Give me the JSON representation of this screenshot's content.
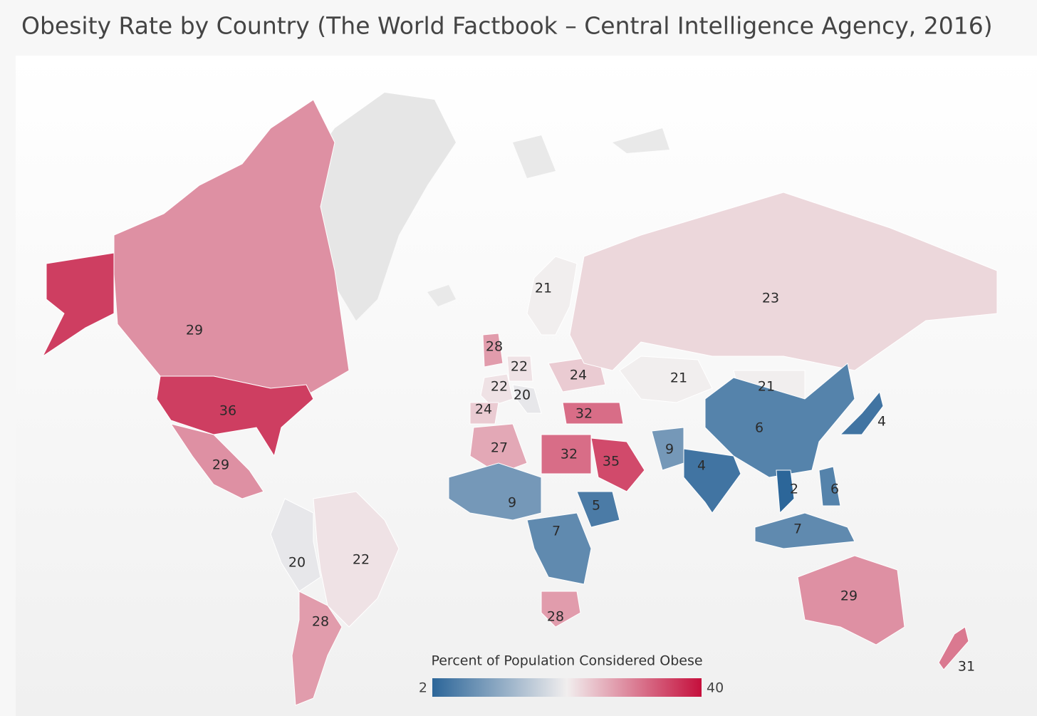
{
  "title": "Obesity Rate by Country (The World Factbook – Central Intelligence Agency, 2016)",
  "map": {
    "regions": [
      {
        "value": 29
      },
      {
        "value": 36
      },
      {
        "value": 29
      },
      {
        "value": 20
      },
      {
        "value": 22
      },
      {
        "value": 28
      },
      {
        "value": 21
      },
      {
        "value": 28
      },
      {
        "value": 22
      },
      {
        "value": 22
      },
      {
        "value": 20
      },
      {
        "value": 24
      },
      {
        "value": 24
      },
      {
        "value": 32
      },
      {
        "value": 23
      },
      {
        "value": 21
      },
      {
        "value": 21
      },
      {
        "value": 6
      },
      {
        "value": 4
      },
      {
        "value": 9
      },
      {
        "value": 4
      },
      {
        "value": 27
      },
      {
        "value": 32
      },
      {
        "value": 35
      },
      {
        "value": 9
      },
      {
        "value": 5
      },
      {
        "value": 7
      },
      {
        "value": 2
      },
      {
        "value": 6
      },
      {
        "value": 7
      },
      {
        "value": 29
      },
      {
        "value": 28
      },
      {
        "value": 31
      }
    ]
  },
  "legend": {
    "title": "Percent of Population Considered Obese",
    "min": 2,
    "max": 40,
    "low_color": "#2c6699",
    "mid_color": "#f1eeee",
    "high_color": "#c50f3c"
  }
}
